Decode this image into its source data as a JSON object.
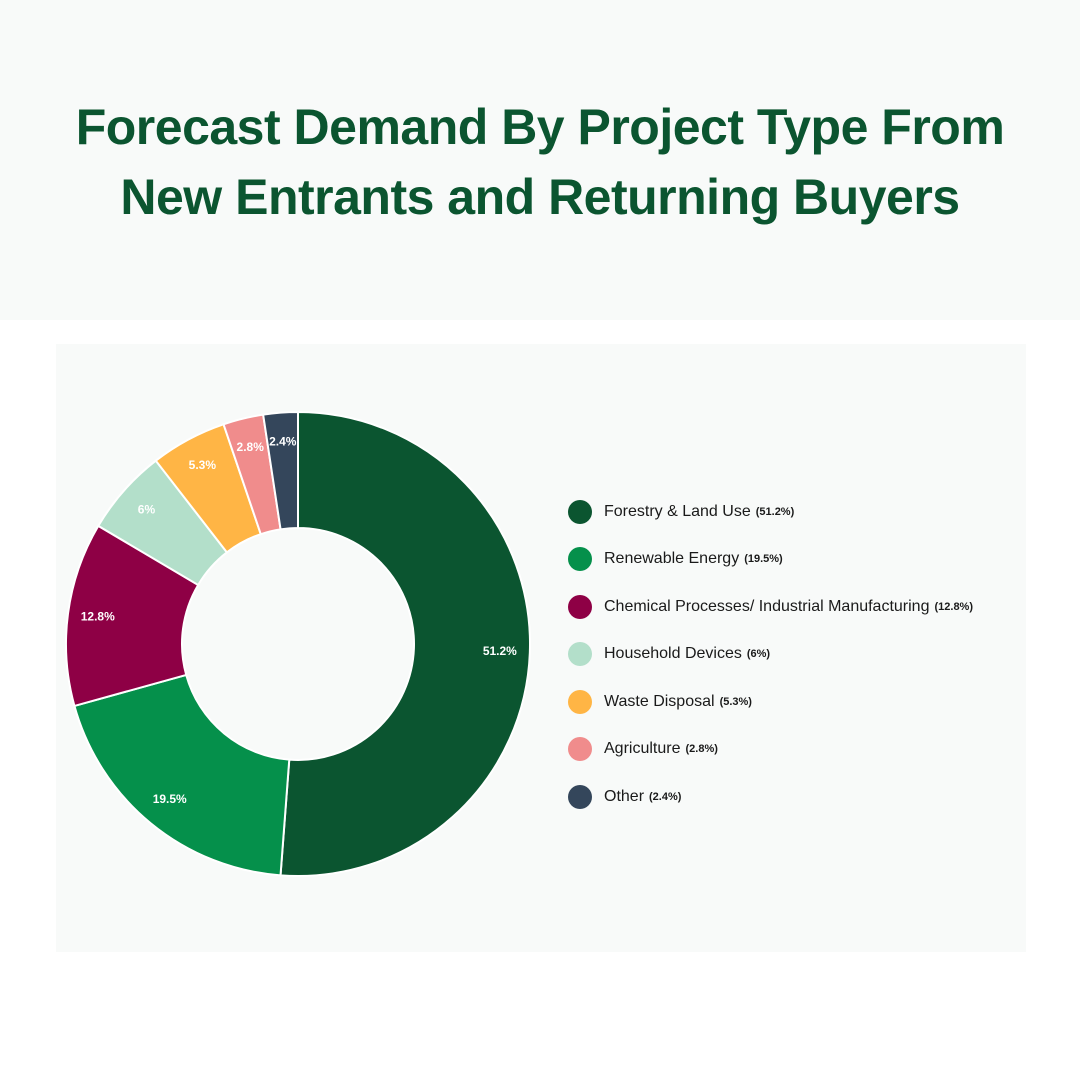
{
  "title_lines": [
    "Forecast Demand By Project Type From",
    "New Entrants and Returning Buyers"
  ],
  "chart_data": {
    "type": "pie",
    "variant": "donut",
    "title": "Forecast Demand By Project Type From New Entrants and Returning Buyers",
    "legend_position": "right",
    "slices": [
      {
        "label": "Forestry & Land Use",
        "value": 51.2,
        "display": "51.2%",
        "legend_value": "(51.2%)",
        "color": "#0b5530"
      },
      {
        "label": "Renewable Energy",
        "value": 19.5,
        "display": "19.5%",
        "legend_value": "(19.5%)",
        "color": "#05904b"
      },
      {
        "label": "Chemical Processes/ Industrial Manufacturing",
        "value": 12.8,
        "display": "12.8%",
        "legend_value": "(12.8%)",
        "color": "#8e0045"
      },
      {
        "label": "Household Devices",
        "value": 6,
        "display": "6%",
        "legend_value": "(6%)",
        "color": "#b3dfca"
      },
      {
        "label": "Waste Disposal",
        "value": 5.3,
        "display": "5.3%",
        "legend_value": "(5.3%)",
        "color": "#ffb545"
      },
      {
        "label": "Agriculture",
        "value": 2.8,
        "display": "2.8%",
        "legend_value": "(2.8%)",
        "color": "#f08c8c"
      },
      {
        "label": "Other",
        "value": 2.4,
        "display": "2.4%",
        "legend_value": "(2.4%)",
        "color": "#34465b"
      }
    ]
  }
}
